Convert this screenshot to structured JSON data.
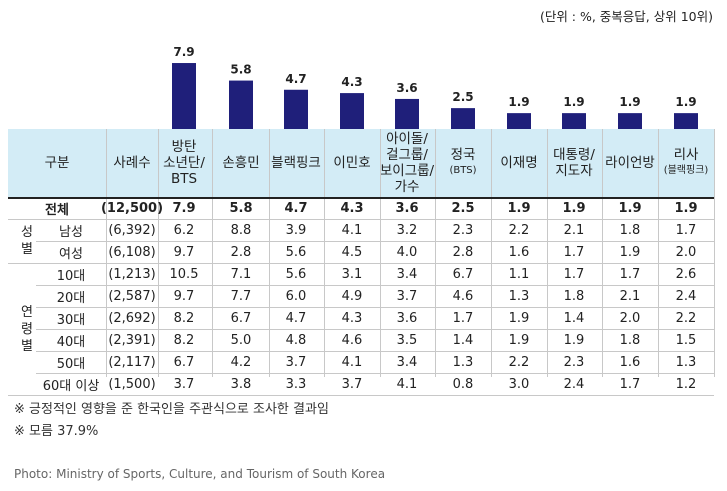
{
  "unit_note": "(단위 : %, 중복응답, 상위 10위)",
  "chart_data": {
    "type": "bar",
    "categories": [
      "방탄 소년단/ BTS",
      "손흥민",
      "블랙핑크",
      "이민호",
      "아이돌/ 걸그룹/ 보이그룹/ 가수",
      "정국 (BTS)",
      "이재명",
      "대통령/ 지도자",
      "라이언방",
      "리사 (블랙핑크)"
    ],
    "values": [
      7.9,
      5.8,
      4.7,
      4.3,
      3.6,
      2.5,
      1.9,
      1.9,
      1.9,
      1.9
    ],
    "bar_color": "#1f1f7a",
    "title": "",
    "xlabel": "",
    "ylabel": ""
  },
  "table": {
    "header_label": "구분",
    "header_count": "사례수",
    "headers": [
      [
        "방탄",
        "소년단/",
        "BTS"
      ],
      [
        "손흥민"
      ],
      [
        "블랙핑크"
      ],
      [
        "이민호"
      ],
      [
        "아이돌/",
        "걸그룹/",
        "보이그룹/",
        "가수"
      ],
      [
        "정국",
        "(BTS)"
      ],
      [
        "이재명"
      ],
      [
        "대통령/",
        "지도자"
      ],
      [
        "라이언방"
      ],
      [
        "리사",
        "(블랙핑크)"
      ]
    ],
    "rows": [
      {
        "group": "",
        "label": "전체",
        "n": "(12,500)",
        "values": [
          "7.9",
          "5.8",
          "4.7",
          "4.3",
          "3.6",
          "2.5",
          "1.9",
          "1.9",
          "1.9",
          "1.9"
        ]
      },
      {
        "group": "성별",
        "label": "남성",
        "n": "(6,392)",
        "values": [
          "6.2",
          "8.8",
          "3.9",
          "4.1",
          "3.2",
          "2.3",
          "2.2",
          "2.1",
          "1.8",
          "1.7"
        ]
      },
      {
        "group": "성별",
        "label": "여성",
        "n": "(6,108)",
        "values": [
          "9.7",
          "2.8",
          "5.6",
          "4.5",
          "4.0",
          "2.8",
          "1.6",
          "1.7",
          "1.9",
          "2.0"
        ]
      },
      {
        "group": "연령별",
        "label": "10대",
        "n": "(1,213)",
        "values": [
          "10.5",
          "7.1",
          "5.6",
          "3.1",
          "3.4",
          "6.7",
          "1.1",
          "1.7",
          "1.7",
          "2.6"
        ]
      },
      {
        "group": "연령별",
        "label": "20대",
        "n": "(2,587)",
        "values": [
          "9.7",
          "7.7",
          "6.0",
          "4.9",
          "3.7",
          "4.6",
          "1.3",
          "1.8",
          "2.1",
          "2.4"
        ]
      },
      {
        "group": "연령별",
        "label": "30대",
        "n": "(2,692)",
        "values": [
          "8.2",
          "6.7",
          "4.7",
          "4.3",
          "3.6",
          "1.7",
          "1.9",
          "1.4",
          "2.0",
          "2.2"
        ]
      },
      {
        "group": "연령별",
        "label": "40대",
        "n": "(2,391)",
        "values": [
          "8.2",
          "5.0",
          "4.8",
          "4.6",
          "3.5",
          "1.4",
          "1.9",
          "1.9",
          "1.8",
          "1.5"
        ]
      },
      {
        "group": "연령별",
        "label": "50대",
        "n": "(2,117)",
        "values": [
          "6.7",
          "4.2",
          "3.7",
          "4.1",
          "3.4",
          "1.3",
          "2.2",
          "2.3",
          "1.6",
          "1.3"
        ]
      },
      {
        "group": "연령별",
        "label": "60대 이상",
        "n": "(1,500)",
        "values": [
          "3.7",
          "3.8",
          "3.3",
          "3.7",
          "4.1",
          "0.8",
          "3.0",
          "2.4",
          "1.7",
          "1.2"
        ]
      }
    ]
  },
  "notes": [
    "※ 긍정적인 영향을 준 한국인을 주관식으로 조사한 결과임",
    "※ 모름 37.9%"
  ],
  "credit": "Photo: Ministry of Sports, Culture, and Tourism of South Korea"
}
